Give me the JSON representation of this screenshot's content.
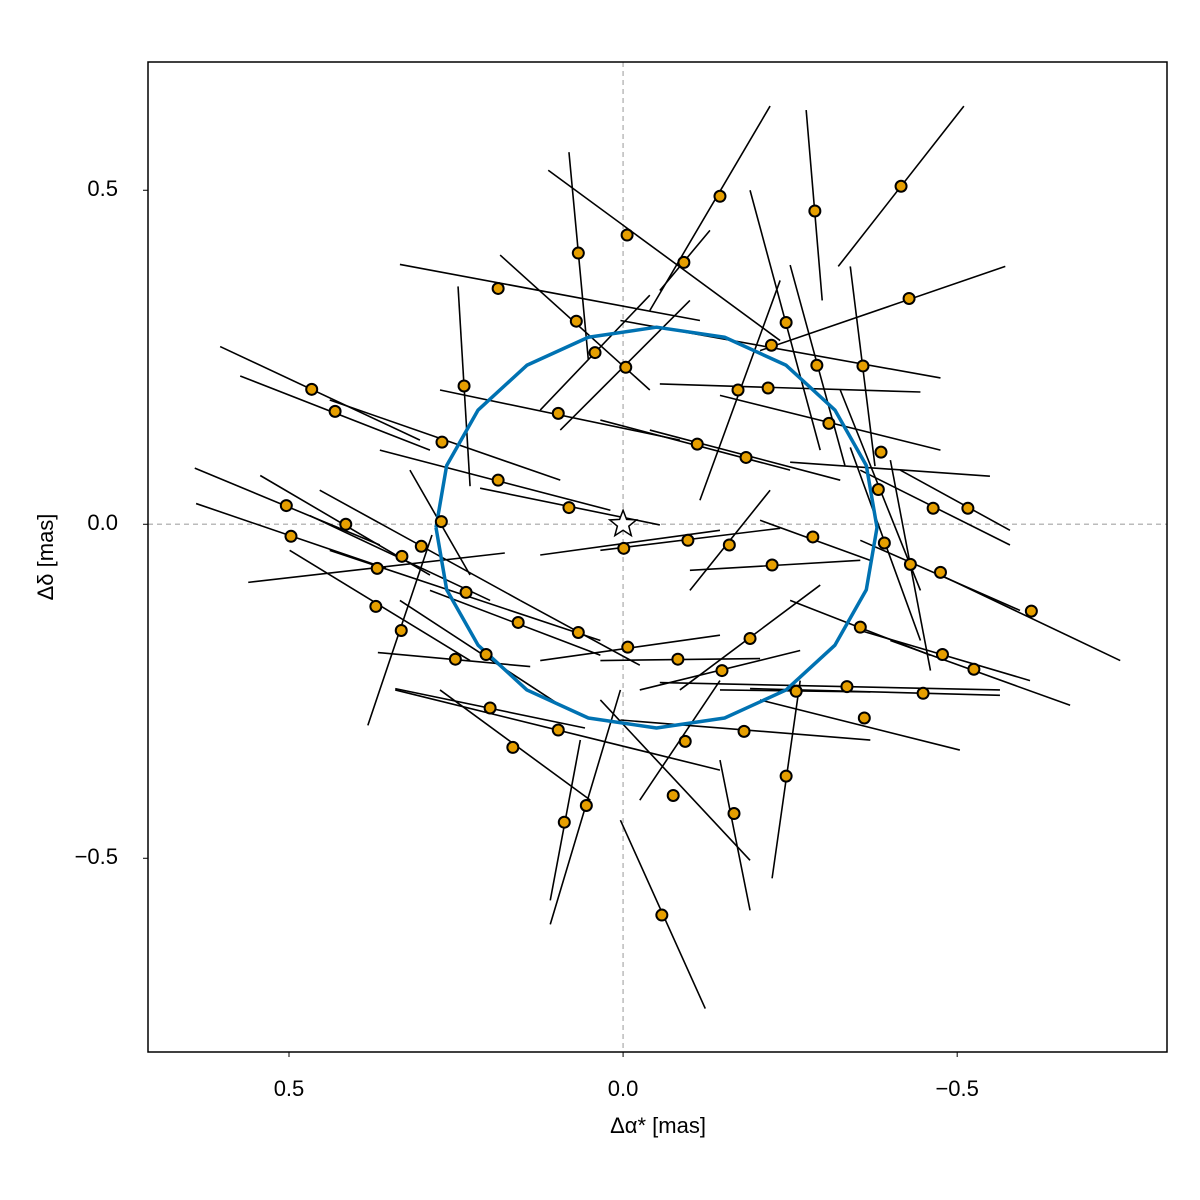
{
  "chart_data": {
    "type": "scatter",
    "xlabel": "Δα* [mas]",
    "ylabel": "Δδ [mas]",
    "xlim": [
      0.711,
      -0.814
    ],
    "ylim": [
      -0.79,
      0.692
    ],
    "xticks": [
      0.5,
      {
        "value": 0,
        "label": "0.0"
      },
      {
        "value": -0.5,
        "label": "−0.5"
      }
    ],
    "yticks": [
      0.5,
      {
        "value": 0,
        "label": "0.0"
      },
      {
        "value": -0.5,
        "label": "−0.5"
      }
    ],
    "zero_lines": true,
    "star": {
      "x": 0,
      "y": 0
    },
    "orbit": {
      "color": "#0072b2",
      "x": [
        0.28,
        0.264,
        0.217,
        0.144,
        0.052,
        -0.05,
        -0.152,
        -0.244,
        -0.317,
        -0.364,
        -0.38,
        -0.364,
        -0.317,
        -0.244,
        -0.152,
        -0.05,
        0.052,
        0.144,
        0.217,
        0.264,
        0.28
      ],
      "y": [
        -0.005,
        0.088,
        0.171,
        0.238,
        0.28,
        0.295,
        0.28,
        0.238,
        0.171,
        0.088,
        -0.005,
        -0.098,
        -0.181,
        -0.248,
        -0.29,
        -0.305,
        -0.29,
        -0.248,
        -0.181,
        -0.098,
        -0.005
      ]
    },
    "measurements": {
      "color": "#e69f00",
      "x": [
        -0.416,
        -0.287,
        -0.145,
        -0.006,
        0.067,
        0.187,
        -0.091,
        -0.428,
        0.466,
        0.431,
        0.238,
        0.07,
        0.042,
        -0.004,
        -0.244,
        -0.222,
        -0.29,
        -0.359,
        -0.172,
        -0.217,
        0.097,
        -0.111,
        -0.184,
        -0.308,
        -0.386,
        -0.464,
        -0.516,
        -0.611,
        -0.382,
        0.504,
        0.497,
        0.415,
        0.368,
        0.272,
        0.187,
        0.081,
        -0.001,
        -0.097,
        -0.159,
        -0.223,
        -0.284,
        -0.391,
        -0.43,
        -0.475,
        0.37,
        0.332,
        0.251,
        0.157,
        0.067,
        -0.007,
        -0.082,
        -0.148,
        -0.19,
        -0.355,
        -0.478,
        -0.525,
        -0.449,
        -0.335,
        -0.259,
        -0.361,
        -0.181,
        -0.093,
        -0.075,
        -0.166,
        -0.244,
        -0.058,
        0.055,
        0.088,
        0.165,
        0.199,
        0.235,
        0.302,
        0.271,
        0.097,
        0.331,
        0.205
      ],
      "y": [
        0.506,
        0.469,
        0.491,
        0.433,
        0.406,
        0.353,
        0.392,
        0.338,
        0.202,
        0.169,
        0.207,
        0.304,
        0.257,
        0.235,
        0.302,
        0.268,
        0.238,
        0.237,
        0.201,
        0.204,
        0.166,
        0.12,
        0.1,
        0.151,
        0.108,
        0.024,
        0.024,
        -0.13,
        0.052,
        0.028,
        -0.018,
        0,
        -0.066,
        0.004,
        0.066,
        0.025,
        -0.036,
        -0.024,
        -0.031,
        -0.061,
        -0.019,
        -0.028,
        -0.06,
        -0.072,
        -0.123,
        -0.159,
        -0.202,
        -0.147,
        -0.162,
        -0.184,
        -0.202,
        -0.219,
        -0.171,
        -0.154,
        -0.195,
        -0.217,
        -0.253,
        -0.243,
        -0.25,
        -0.29,
        -0.31,
        -0.325,
        -0.406,
        -0.433,
        -0.377,
        -0.585,
        -0.421,
        -0.446,
        -0.334,
        -0.275,
        -0.102,
        -0.033,
        0.123,
        -0.308,
        -0.048,
        -0.195
      ],
      "segments": [
        [
          -0.322,
          0.386,
          -0.51,
          0.626
        ],
        [
          -0.274,
          0.62,
          -0.298,
          0.335
        ],
        [
          -0.22,
          0.626,
          -0.04,
          0.32
        ],
        [
          0.112,
          0.53,
          -0.235,
          0.275
        ],
        [
          0.081,
          0.557,
          0.052,
          0.246
        ],
        [
          0.334,
          0.389,
          -0.115,
          0.305
        ],
        [
          -0.055,
          0.35,
          -0.13,
          0.44
        ],
        [
          -0.205,
          0.26,
          -0.572,
          0.386
        ],
        [
          0.603,
          0.266,
          0.304,
          0.126
        ],
        [
          0.573,
          0.222,
          0.289,
          0.111
        ],
        [
          0.247,
          0.356,
          0.229,
          0.057
        ],
        [
          0.184,
          0.403,
          -0.04,
          0.201
        ],
        [
          0.124,
          0.171,
          -0.04,
          0.343
        ],
        [
          0.094,
          0.141,
          -0.1,
          0.335
        ],
        [
          -0.19,
          0.5,
          -0.295,
          0.111
        ],
        [
          0.004,
          0.305,
          -0.475,
          0.219
        ],
        [
          -0.25,
          0.388,
          -0.332,
          0.088
        ],
        [
          -0.34,
          0.386,
          -0.377,
          0.087
        ],
        [
          -0.115,
          0.036,
          -0.235,
          0.365
        ],
        [
          -0.055,
          0.21,
          -0.445,
          0.198
        ],
        [
          0.274,
          0.201,
          -0.085,
          0.126
        ],
        [
          0.034,
          0.156,
          -0.25,
          0.081
        ],
        [
          -0.04,
          0.141,
          -0.325,
          0.066
        ],
        [
          -0.145,
          0.193,
          -0.475,
          0.111
        ],
        [
          -0.25,
          0.093,
          -0.549,
          0.072
        ],
        [
          -0.355,
          0.081,
          -0.579,
          -0.031
        ],
        [
          -0.415,
          0.081,
          -0.579,
          -0.009
        ],
        [
          -0.475,
          -0.076,
          -0.744,
          -0.204
        ],
        [
          -0.325,
          0.201,
          -0.445,
          -0.099
        ],
        [
          0.641,
          0.084,
          0.364,
          -0.031
        ],
        [
          0.639,
          0.031,
          0.355,
          -0.066
        ],
        [
          0.543,
          0.073,
          0.289,
          -0.076
        ],
        [
          0.561,
          -0.087,
          0.177,
          -0.043
        ],
        [
          0.319,
          0.081,
          0.229,
          -0.076
        ],
        [
          0.364,
          0.111,
          0.019,
          0.021
        ],
        [
          0.214,
          0.054,
          -0.055,
          -0.001
        ],
        [
          0.124,
          -0.046,
          -0.145,
          -0.009
        ],
        [
          0.034,
          -0.039,
          -0.235,
          -0.006
        ],
        [
          -0.1,
          -0.099,
          -0.22,
          0.051
        ],
        [
          -0.1,
          -0.069,
          -0.355,
          -0.054
        ],
        [
          -0.205,
          0.006,
          -0.37,
          -0.054
        ],
        [
          -0.34,
          0.115,
          -0.445,
          -0.174
        ],
        [
          -0.4,
          0.096,
          -0.46,
          -0.219
        ],
        [
          -0.355,
          -0.024,
          -0.594,
          -0.129
        ],
        [
          0.499,
          -0.039,
          0.229,
          -0.204
        ],
        [
          0.382,
          -0.301,
          0.286,
          -0.016
        ],
        [
          0.367,
          -0.192,
          0.139,
          -0.213
        ],
        [
          0.289,
          -0.099,
          0.034,
          -0.196
        ],
        [
          0.154,
          -0.114,
          -0.025,
          -0.211
        ],
        [
          0.124,
          -0.204,
          -0.145,
          -0.166
        ],
        [
          0.034,
          -0.204,
          -0.205,
          -0.201
        ],
        [
          -0.025,
          -0.248,
          -0.265,
          -0.189
        ],
        [
          -0.085,
          -0.248,
          -0.295,
          -0.091
        ],
        [
          -0.25,
          -0.114,
          -0.46,
          -0.196
        ],
        [
          -0.355,
          -0.159,
          -0.609,
          -0.234
        ],
        [
          -0.4,
          -0.174,
          -0.669,
          -0.271
        ],
        [
          -0.19,
          -0.246,
          -0.564,
          -0.256
        ],
        [
          -0.055,
          -0.237,
          -0.564,
          -0.248
        ],
        [
          -0.145,
          -0.248,
          -0.37,
          -0.251
        ],
        [
          -0.205,
          -0.263,
          -0.504,
          -0.338
        ],
        [
          0.004,
          -0.293,
          -0.37,
          -0.323
        ],
        [
          -0.025,
          -0.413,
          -0.145,
          -0.234
        ],
        [
          0.034,
          -0.263,
          -0.19,
          -0.503
        ],
        [
          -0.145,
          -0.353,
          -0.19,
          -0.578
        ],
        [
          -0.223,
          -0.53,
          -0.265,
          -0.234
        ],
        [
          0.004,
          -0.443,
          -0.123,
          -0.725
        ],
        [
          0.109,
          -0.599,
          0.004,
          -0.248
        ],
        [
          0.109,
          -0.563,
          0.064,
          -0.323
        ],
        [
          0.274,
          -0.248,
          0.049,
          -0.413
        ],
        [
          0.341,
          -0.246,
          0.057,
          -0.305
        ],
        [
          0.439,
          -0.039,
          0.034,
          -0.174
        ],
        [
          0.454,
          0.051,
          0.154,
          -0.114
        ],
        [
          0.439,
          0.186,
          0.094,
          0.066
        ],
        [
          0.341,
          -0.248,
          -0.145,
          -0.368
        ],
        [
          0.469,
          0.013,
          0.199,
          -0.114
        ],
        [
          0.334,
          -0.114,
          0.094,
          -0.271
        ]
      ]
    }
  }
}
